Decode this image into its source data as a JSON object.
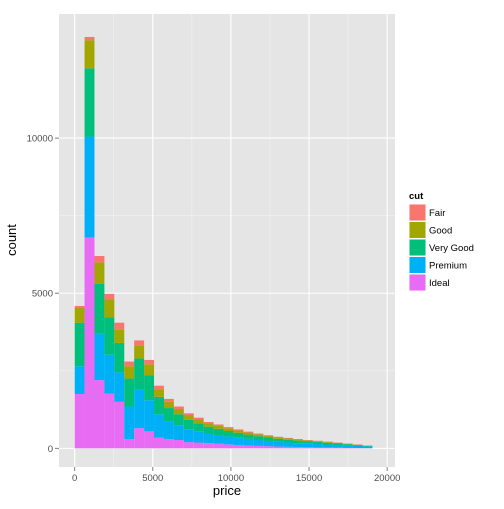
{
  "chart_data": {
    "type": "bar",
    "stacked": true,
    "title": "",
    "xlabel": "price",
    "ylabel": "count",
    "xlim": [
      -1000,
      20500
    ],
    "ylim": [
      -600,
      14000
    ],
    "x_ticks": [
      0,
      5000,
      10000,
      15000,
      20000
    ],
    "x_tick_labels": [
      "0",
      "5000",
      "10000",
      "15000",
      "20000"
    ],
    "y_ticks": [
      0,
      5000,
      10000
    ],
    "y_tick_labels": [
      "0",
      "5000",
      "10000"
    ],
    "grid": true,
    "bin_edges": [
      0,
      635.2,
      1270.4,
      1905.6,
      2540.8,
      3176,
      3811.2,
      4446.4,
      5081.6,
      5716.8,
      6352,
      6987.2,
      7622.4,
      8257.6,
      8892.8,
      9528,
      10163.2,
      10798.4,
      11433.6,
      12068.8,
      12704,
      13339.2,
      13974.4,
      14609.6,
      15244.8,
      15880,
      16515.2,
      17150.4,
      17785.6,
      18420.8,
      19056
    ],
    "legend": {
      "title": "cut",
      "position": "right",
      "entries": [
        "Fair",
        "Good",
        "Very Good",
        "Premium",
        "Ideal"
      ]
    },
    "series": [
      {
        "name": "Fair",
        "color": "#F8766D",
        "values": [
          40,
          110,
          200,
          180,
          210,
          150,
          160,
          140,
          110,
          95,
          80,
          70,
          60,
          50,
          45,
          40,
          35,
          30,
          28,
          25,
          22,
          20,
          18,
          16,
          15,
          13,
          12,
          10,
          8,
          5
        ]
      },
      {
        "name": "Good",
        "color": "#A3A500",
        "values": [
          500,
          900,
          700,
          580,
          440,
          400,
          420,
          360,
          250,
          200,
          170,
          140,
          120,
          100,
          95,
          85,
          75,
          65,
          55,
          48,
          42,
          38,
          34,
          30,
          27,
          24,
          20,
          15,
          10,
          5
        ]
      },
      {
        "name": "Very Good",
        "color": "#00BF7D",
        "values": [
          1400,
          2200,
          1600,
          1200,
          950,
          900,
          1000,
          800,
          560,
          420,
          350,
          300,
          260,
          220,
          200,
          180,
          160,
          140,
          125,
          110,
          100,
          90,
          80,
          72,
          64,
          56,
          48,
          40,
          30,
          20
        ]
      },
      {
        "name": "Premium",
        "color": "#00B0F6",
        "values": [
          900,
          3250,
          1500,
          1250,
          950,
          1050,
          1250,
          1000,
          750,
          580,
          480,
          420,
          360,
          310,
          280,
          250,
          230,
          210,
          190,
          170,
          150,
          140,
          130,
          115,
          110,
          100,
          90,
          80,
          70,
          60
        ]
      },
      {
        "name": "Ideal",
        "color": "#E76BF3",
        "values": [
          1750,
          6800,
          2200,
          1770,
          1500,
          300,
          650,
          550,
          350,
          300,
          270,
          200,
          190,
          170,
          150,
          130,
          110,
          95,
          80,
          70,
          60,
          50,
          40,
          35,
          30,
          25,
          20,
          15,
          10,
          5
        ]
      }
    ]
  }
}
